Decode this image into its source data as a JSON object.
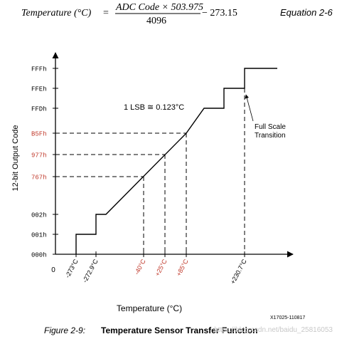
{
  "equation": {
    "lhs": "Temperature (°C)",
    "equals": "=",
    "numerator": "ADC Code × 503.975",
    "denominator": "4096",
    "tail": "− 273.15",
    "label": "Equation 2-6"
  },
  "chart_data": {
    "type": "line",
    "xlabel": "Temperature (°C)",
    "ylabel": "12-bit Output Code",
    "x_tick_labels": [
      "-273°C",
      "-272.9°C",
      "-40°C",
      "+25°C",
      "+85°C",
      "+230.7°C"
    ],
    "x_tick_values": [
      -273,
      -272.9,
      -40,
      25,
      85,
      230.7
    ],
    "highlight_x_ticks": [
      "-40°C",
      "+25°C",
      "+85°C"
    ],
    "y_tick_labels": [
      "000h",
      "001h",
      "002h",
      "767h",
      "977h",
      "B5Fh",
      "FFDh",
      "FFEh",
      "FFFh"
    ],
    "highlight_y_ticks": [
      "767h",
      "977h",
      "B5Fh"
    ],
    "origin_label": "0",
    "annotations": {
      "lsb": "1 LSB ≅ 0.123°C",
      "full_scale": [
        "Full Scale",
        "Transition"
      ]
    },
    "series": [
      {
        "points": [
          [
            -273,
            "000h"
          ],
          [
            -272.9,
            "001h"
          ],
          [
            -40,
            "767h"
          ],
          [
            25,
            "977h"
          ],
          [
            85,
            "B5Fh"
          ],
          [
            230.7,
            "FFFh"
          ]
        ]
      }
    ],
    "footnote": "X17025-110817",
    "highlight_color": "#c0392b",
    "line_color": "#000000"
  },
  "caption": {
    "number": "Figure 2-9:",
    "title": "Temperature Sensor Transfer Function",
    "watermark": "https://blog.csdn.net/baidu_25816053"
  }
}
